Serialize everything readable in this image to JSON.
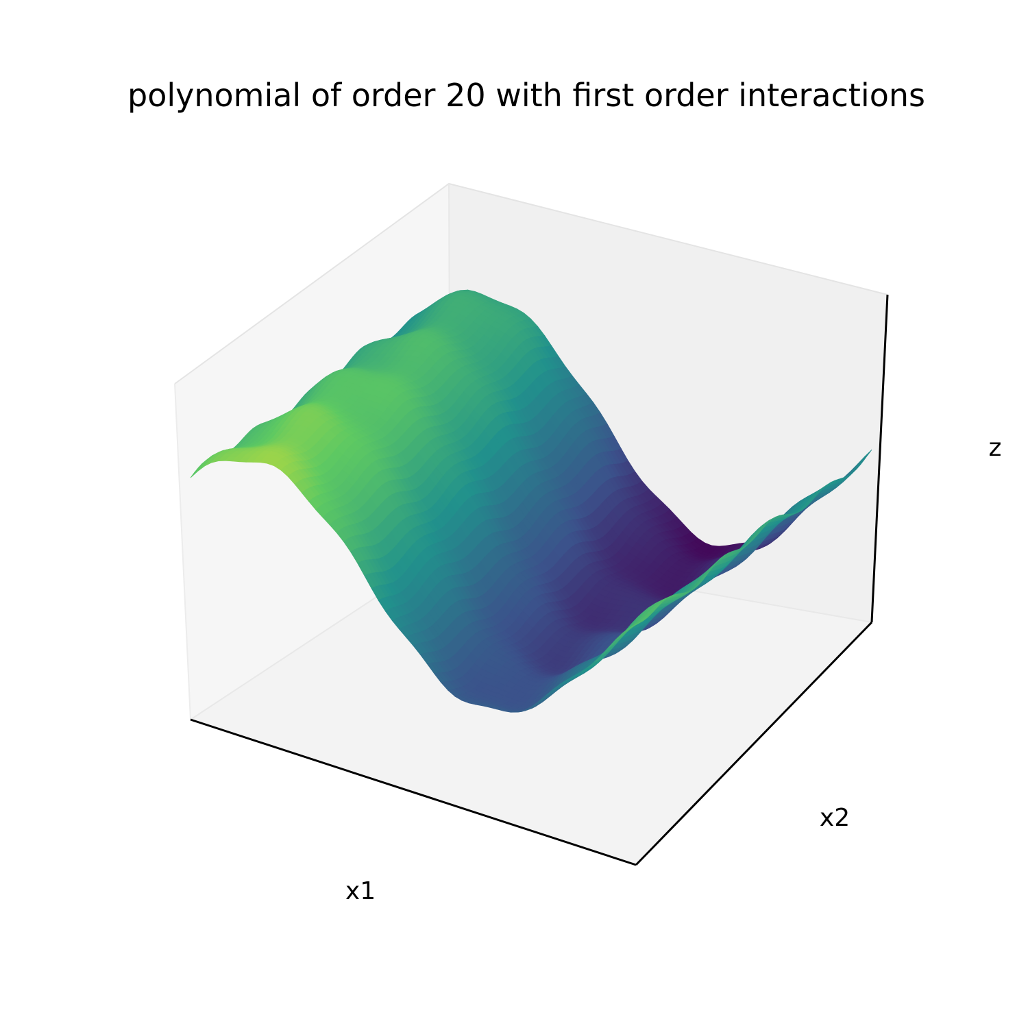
{
  "chart_data": {
    "type": "surface",
    "title": "polynomial of order 20 with first order interactions",
    "xlabel": "x1",
    "ylabel": "x2",
    "zlabel": "z",
    "ticks_shown": false,
    "grid": false,
    "colormap": "viridis",
    "colormap_stops": [
      "#440154",
      "#3b528b",
      "#21918c",
      "#5ec962",
      "#fde725"
    ]
  }
}
